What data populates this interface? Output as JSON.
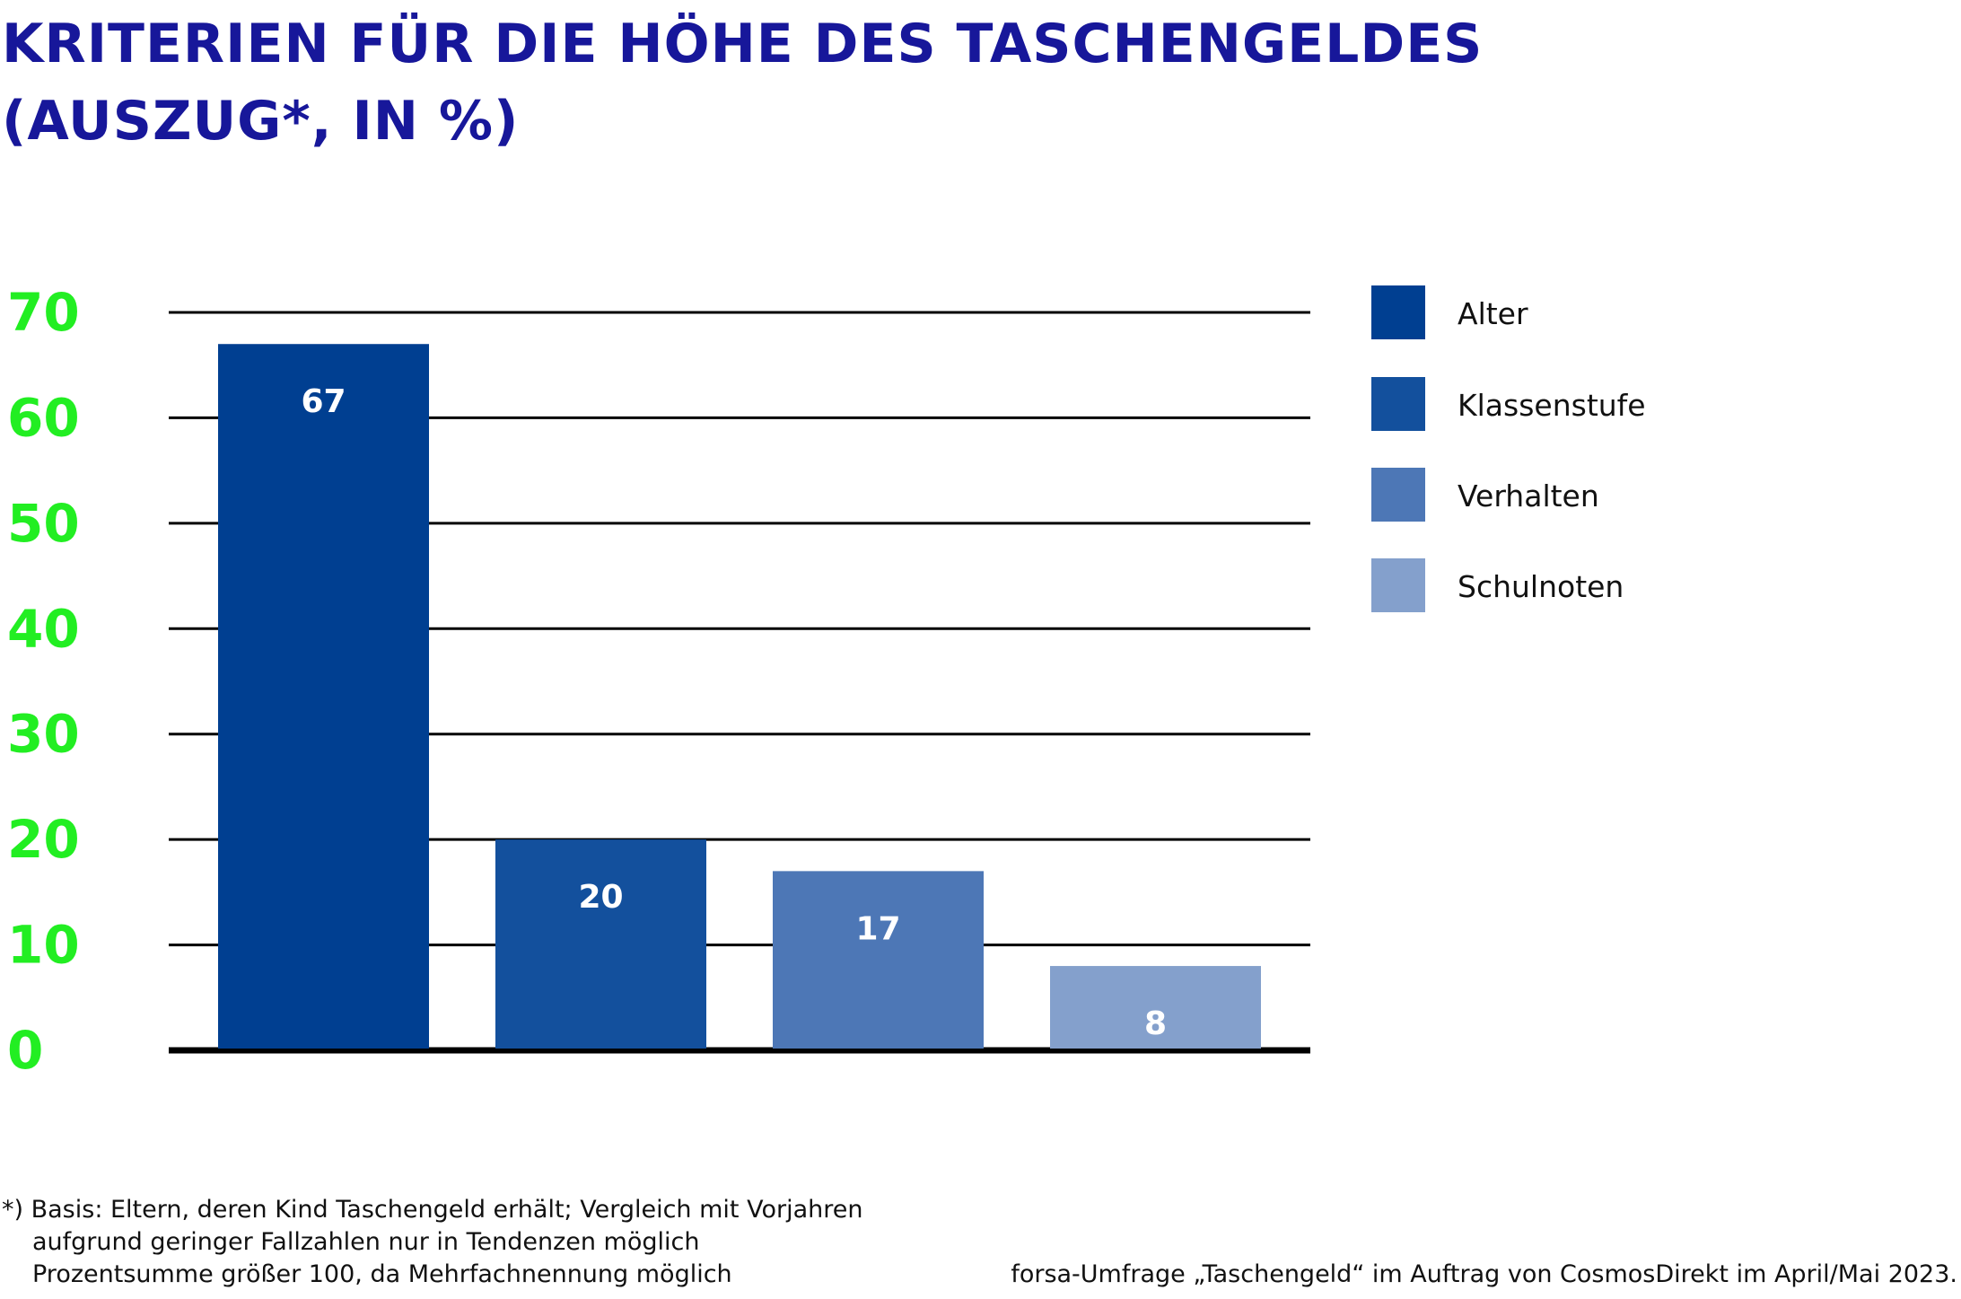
{
  "header": {
    "title_line1": "KRITERIEN FÜR DIE HÖHE DES TASCHENGELDES",
    "title_line2": "(AUSZUG*, IN %)"
  },
  "chart_data": {
    "type": "bar",
    "categories": [
      "Alter",
      "Klassenstufe",
      "Verhalten",
      "Schulnoten"
    ],
    "values": [
      67,
      20,
      17,
      8
    ],
    "colors": [
      "#003f91",
      "#13509d",
      "#4d77b6",
      "#84a0cc"
    ],
    "ylim": [
      0,
      70
    ],
    "yticks": [
      0,
      10,
      20,
      30,
      40,
      50,
      60,
      70
    ],
    "tick_color": "#22ee22",
    "grid": true,
    "legend": "right",
    "data_labels": [
      "67",
      "20",
      "17",
      "8"
    ]
  },
  "footnote": {
    "line1": "*) Basis: Eltern, deren Kind Taschengeld erhält; Vergleich mit Vorjahren",
    "line2": "aufgrund geringer Fallzahlen nur in Tendenzen möglich",
    "line3": "Prozentsumme größer 100, da Mehrfachnennung möglich"
  },
  "source": "forsa-Umfrage „Taschengeld“ im Auftrag von CosmosDirekt im April/Mai 2023."
}
